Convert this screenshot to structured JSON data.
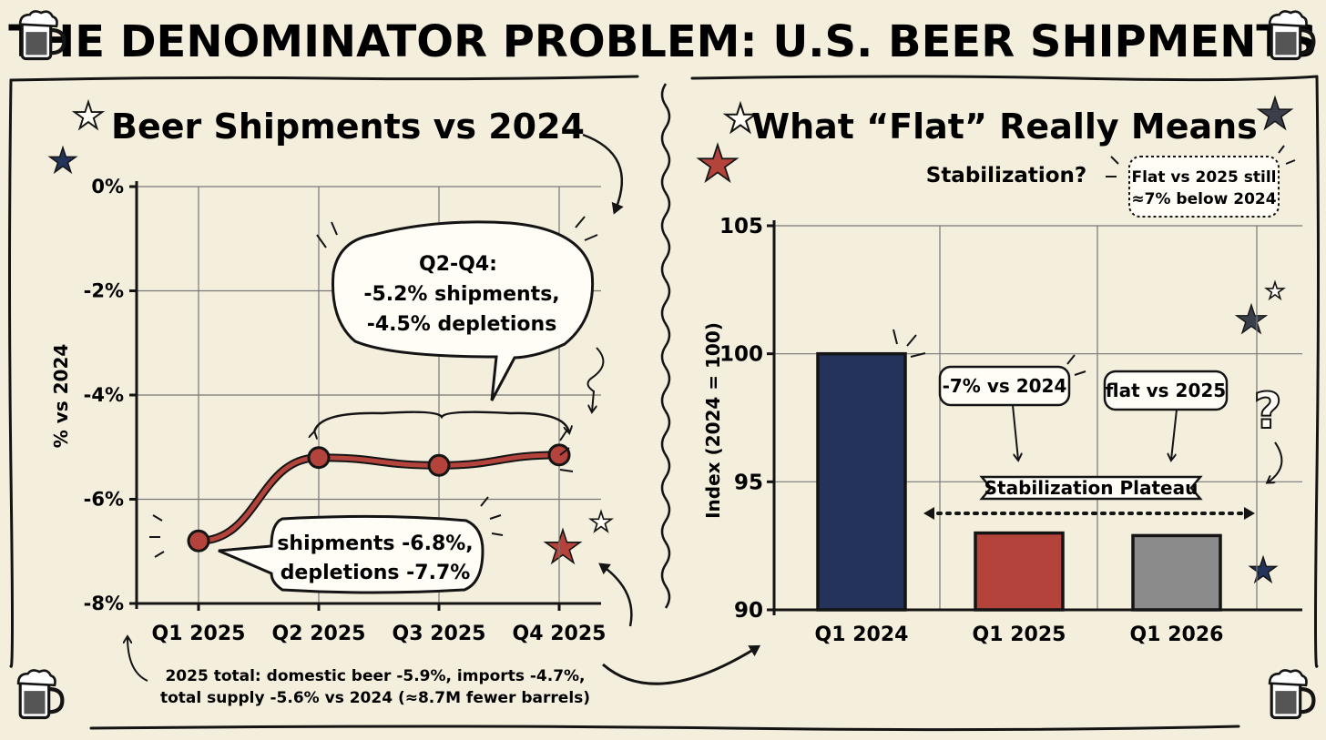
{
  "title": "THE DENOMINATOR PROBLEM: U.S. BEER SHIPMENTS",
  "colors": {
    "navy": "#23335a",
    "red": "#b4443b",
    "gray": "#8b8b8b",
    "ink": "#141414",
    "paper": "#f4eedd"
  },
  "left_panel": {
    "title": "Beer Shipments vs 2024",
    "callout_q2q4": [
      "Q2-Q4:",
      "-5.2% shipments,",
      "-4.5% depletions"
    ],
    "callout_q1": [
      "shipments -6.8%,",
      "depletions -7.7%"
    ],
    "footnote": [
      "2025 total: domestic beer -5.9%, imports -4.7%,",
      "total supply -5.6% vs 2024 (≈8.7M fewer barrels)"
    ]
  },
  "right_panel": {
    "title": "What “Flat” Really Means",
    "subtitle": "Stabilization?",
    "note": [
      "Flat vs 2025 still",
      "≈7% below 2024"
    ],
    "label_minus7": "-7% vs 2024",
    "label_flat": "flat vs 2025",
    "plateau_label": "Stabilization Plateau",
    "question_mark": "?"
  },
  "chart_data": [
    {
      "type": "line",
      "title": "Beer Shipments vs 2024",
      "xlabel": "",
      "ylabel": "% vs 2024",
      "categories": [
        "Q1 2025",
        "Q2 2025",
        "Q3 2025",
        "Q4 2025"
      ],
      "series": [
        {
          "name": "shipments",
          "values": [
            -6.8,
            -5.2,
            -5.35,
            -5.15
          ]
        }
      ],
      "ylim": [
        -8,
        0
      ],
      "yticks": [
        0,
        -2,
        -4,
        -6,
        -8
      ],
      "ytick_labels": [
        "0%",
        "-2%",
        "-4%",
        "-6%",
        "-8%"
      ],
      "grid": true
    },
    {
      "type": "bar",
      "title": "What “Flat” Really Means",
      "xlabel": "",
      "ylabel": "Index (2024 = 100)",
      "categories": [
        "Q1 2024",
        "Q1 2025",
        "Q1 2026"
      ],
      "values": [
        100,
        93,
        92.9
      ],
      "ylim": [
        90,
        105
      ],
      "yticks": [
        90,
        95,
        100,
        105
      ],
      "ytick_labels": [
        "90",
        "95",
        "100",
        "105"
      ],
      "grid": true
    }
  ]
}
